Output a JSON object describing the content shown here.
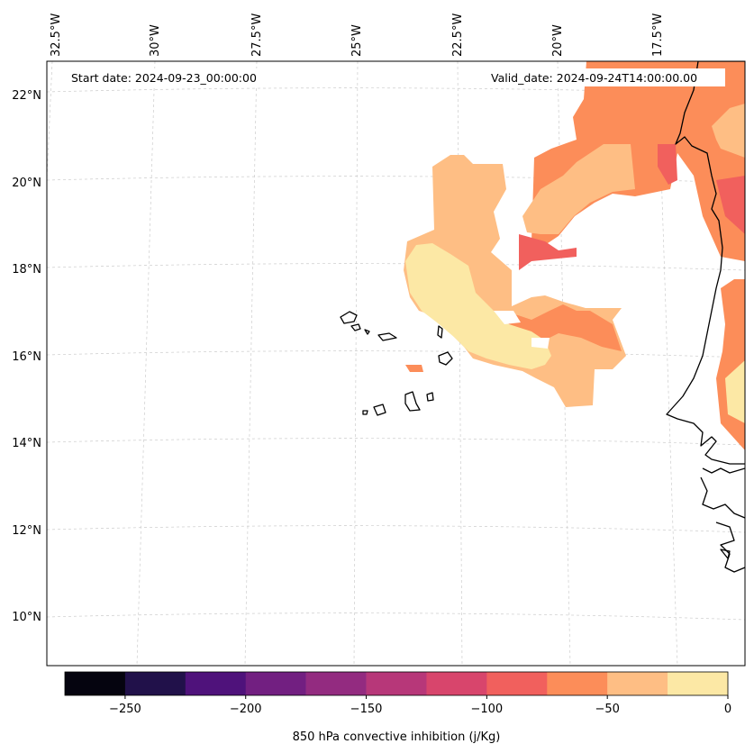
{
  "map": {
    "start_date": "Start date: 2024-09-23_00:00:00",
    "valid_date": "Valid_date: 2024-09-24T14:00:00.00",
    "lon_labels": [
      "32.5°W",
      "30°W",
      "27.5°W",
      "25°W",
      "22.5°W",
      "20°W",
      "17.5°W"
    ],
    "lat_labels": [
      "22°N",
      "20°N",
      "18°N",
      "16°N",
      "14°N",
      "12°N",
      "10°N"
    ],
    "coastline_color": "#000000",
    "gridline_color": "#cccccc"
  },
  "colorbar": {
    "label": "850 hPa convective inhibition (j/Kg)",
    "ticks": [
      "−250",
      "−200",
      "−150",
      "−100",
      "−50",
      "0"
    ],
    "tick_values": [
      -250,
      -200,
      -150,
      -100,
      -50,
      0
    ],
    "range": [
      -275,
      0
    ],
    "colors": [
      "#05040f",
      "#21114a",
      "#4f127b",
      "#721f81",
      "#932b80",
      "#b73779",
      "#d8456c",
      "#f1605d",
      "#fc8d59",
      "#febe84",
      "#fce8a5"
    ]
  },
  "legend_levels": {
    "very_light": "#fce8a5",
    "light": "#febe84",
    "medium": "#fc8d59",
    "red": "#f1605d",
    "deep": "#d8456c"
  }
}
